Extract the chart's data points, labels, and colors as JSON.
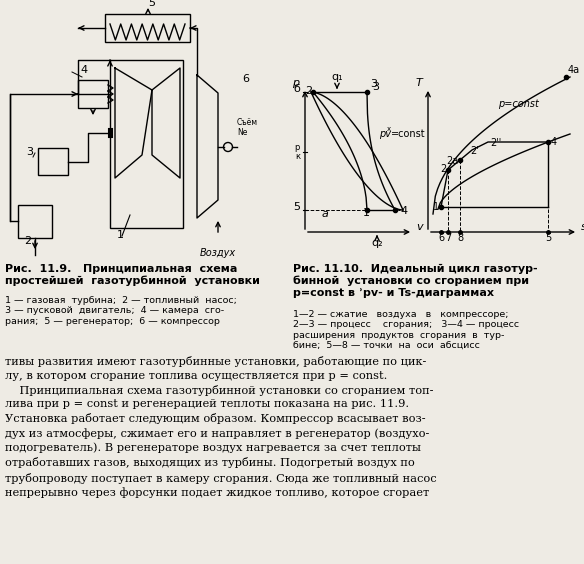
{
  "bg_color": "#eeebe4",
  "lw": 1.0,
  "caption_left_bold": "Рис.  11.9.   Принципиальная  схема\nпростейшей  газотурбинной  установки",
  "caption_left_small": "1 — газовая  турбина;  2 — топливный  насос;\n3 — пусковой  двигатель;  4 — камера  сго-\nрания;  5 — регенератор;  6 — компрессор",
  "caption_right_bold": "Рис. 11.10.  Идеальный цикл газотур-\nбинной  установки со сгоранием при\np=const в ʾpv- и Ts-диаграммах",
  "caption_right_small": "1—2 — сжатие   воздуха   в   компрессоре;\n2—3 — процесс    сгорания;   3—4 — процесс\nрасширения  продуктов  сгорания  в  тур-\nбине;  5—8 — точки  на  оси  абсцисс",
  "body_text": "тивы развития имеют газотурбинные установки, работающие по цик-\nлу, в котором сгорание топлива осуществляется при p = const.\n    Принципиальная схема газотурбинной установки со сгоранием топ-\nлива при p = const и регенерацией теплоты показана на рис. 11.9.\nУстановка работает следующим образом. Компрессор всасывает воз-\nдух из атмосферы, сжимает его и направляет в регенератор (воздухо-\nподогреватель). В регенераторе воздух нагревается за счет теплоты\nотработавших газов, выходящих из турбины. Подогретый воздух по\nтрубопроводу поступает в камеру сгорания. Сюда же топливный насос\nнепрерывно через форсунки подает жидкое топливо, которое сгорает"
}
